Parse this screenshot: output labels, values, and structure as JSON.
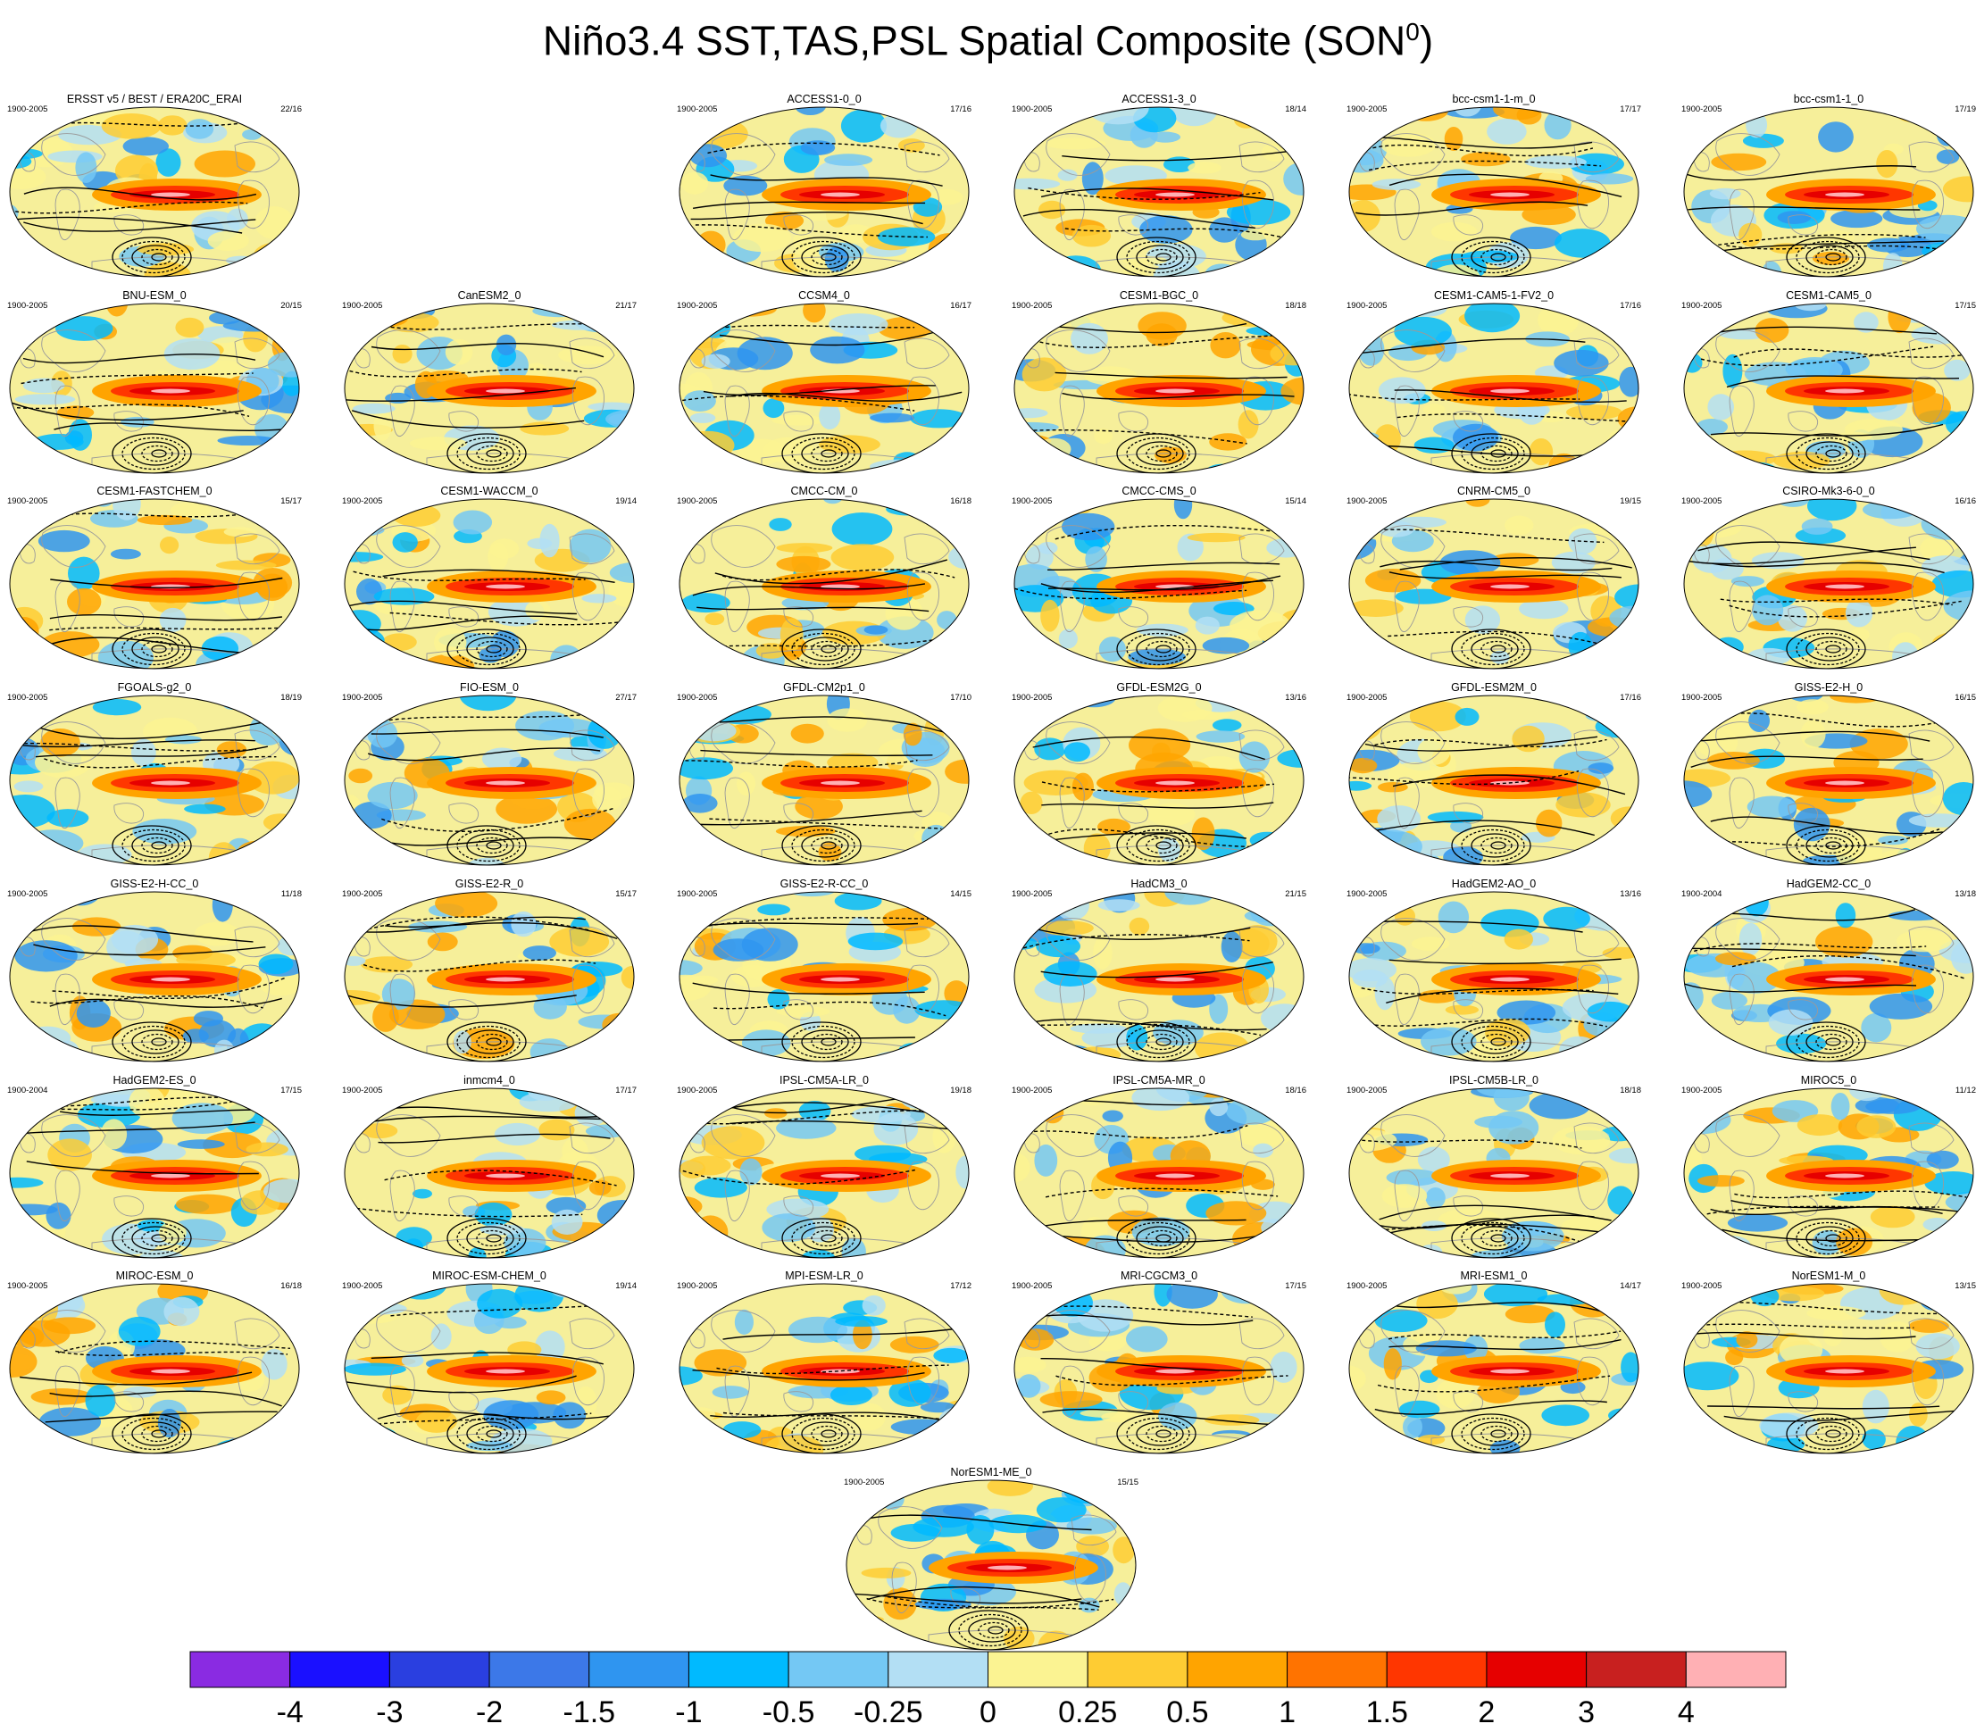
{
  "figure": {
    "title_main": "Niño3.4 SST,TAS,PSL Spatial Composite (SON",
    "title_sup": "0",
    "title_end": ")"
  },
  "colors": {
    "ocean_base": "#f6ef9a",
    "land_outline": "#9a9a9a",
    "contour": "#000000"
  },
  "panels": [
    {
      "title": "ERSST v5 / BEST / ERA20C_ERAI",
      "period": "1900-2005",
      "count": "22/16"
    },
    {
      "title": "ACCESS1-0_0",
      "period": "1900-2005",
      "count": "17/16"
    },
    {
      "title": "ACCESS1-3_0",
      "period": "1900-2005",
      "count": "18/14"
    },
    {
      "title": "bcc-csm1-1-m_0",
      "period": "1900-2005",
      "count": "17/17"
    },
    {
      "title": "bcc-csm1-1_0",
      "period": "1900-2005",
      "count": "17/19"
    },
    {
      "title": "BNU-ESM_0",
      "period": "1900-2005",
      "count": "20/15"
    },
    {
      "title": "CanESM2_0",
      "period": "1900-2005",
      "count": "21/17"
    },
    {
      "title": "CCSM4_0",
      "period": "1900-2005",
      "count": "16/17"
    },
    {
      "title": "CESM1-BGC_0",
      "period": "1900-2005",
      "count": "18/18"
    },
    {
      "title": "CESM1-CAM5-1-FV2_0",
      "period": "1900-2005",
      "count": "17/16"
    },
    {
      "title": "CESM1-CAM5_0",
      "period": "1900-2005",
      "count": "17/15"
    },
    {
      "title": "CESM1-FASTCHEM_0",
      "period": "1900-2005",
      "count": "15/17"
    },
    {
      "title": "CESM1-WACCM_0",
      "period": "1900-2005",
      "count": "19/14"
    },
    {
      "title": "CMCC-CM_0",
      "period": "1900-2005",
      "count": "16/18"
    },
    {
      "title": "CMCC-CMS_0",
      "period": "1900-2005",
      "count": "15/14"
    },
    {
      "title": "CNRM-CM5_0",
      "period": "1900-2005",
      "count": "19/15"
    },
    {
      "title": "CSIRO-Mk3-6-0_0",
      "period": "1900-2005",
      "count": "16/16"
    },
    {
      "title": "FGOALS-g2_0",
      "period": "1900-2005",
      "count": "18/19"
    },
    {
      "title": "FIO-ESM_0",
      "period": "1900-2005",
      "count": "27/17"
    },
    {
      "title": "GFDL-CM2p1_0",
      "period": "1900-2005",
      "count": "17/10"
    },
    {
      "title": "GFDL-ESM2G_0",
      "period": "1900-2005",
      "count": "13/16"
    },
    {
      "title": "GFDL-ESM2M_0",
      "period": "1900-2005",
      "count": "17/16"
    },
    {
      "title": "GISS-E2-H_0",
      "period": "1900-2005",
      "count": "16/15"
    },
    {
      "title": "GISS-E2-H-CC_0",
      "period": "1900-2005",
      "count": "11/18"
    },
    {
      "title": "GISS-E2-R_0",
      "period": "1900-2005",
      "count": "15/17"
    },
    {
      "title": "GISS-E2-R-CC_0",
      "period": "1900-2005",
      "count": "14/15"
    },
    {
      "title": "HadCM3_0",
      "period": "1900-2005",
      "count": "21/15"
    },
    {
      "title": "HadGEM2-AO_0",
      "period": "1900-2005",
      "count": "13/16"
    },
    {
      "title": "HadGEM2-CC_0",
      "period": "1900-2004",
      "count": "13/18"
    },
    {
      "title": "HadGEM2-ES_0",
      "period": "1900-2004",
      "count": "17/15"
    },
    {
      "title": "inmcm4_0",
      "period": "1900-2005",
      "count": "17/17"
    },
    {
      "title": "IPSL-CM5A-LR_0",
      "period": "1900-2005",
      "count": "19/18"
    },
    {
      "title": "IPSL-CM5A-MR_0",
      "period": "1900-2005",
      "count": "18/16"
    },
    {
      "title": "IPSL-CM5B-LR_0",
      "period": "1900-2005",
      "count": "18/18"
    },
    {
      "title": "MIROC5_0",
      "period": "1900-2005",
      "count": "11/12"
    },
    {
      "title": "MIROC-ESM_0",
      "period": "1900-2005",
      "count": "16/18"
    },
    {
      "title": "MIROC-ESM-CHEM_0",
      "period": "1900-2005",
      "count": "19/14"
    },
    {
      "title": "MPI-ESM-LR_0",
      "period": "1900-2005",
      "count": "17/12"
    },
    {
      "title": "MRI-CGCM3_0",
      "period": "1900-2005",
      "count": "17/15"
    },
    {
      "title": "MRI-ESM1_0",
      "period": "1900-2005",
      "count": "14/17"
    },
    {
      "title": "NorESM1-M_0",
      "period": "1900-2005",
      "count": "13/15"
    },
    {
      "title": "NorESM1-ME_0",
      "period": "1900-2005",
      "count": "15/15"
    }
  ],
  "colorbar": {
    "labels": [
      "-4",
      "-3",
      "-2",
      "-1.5",
      "-1",
      "-0.5",
      "-0.25",
      "0",
      "0.25",
      "0.5",
      "1",
      "1.5",
      "2",
      "3",
      "4"
    ],
    "colors": [
      "#8a2be2",
      "#1a10ff",
      "#2a3fe0",
      "#3c78e8",
      "#2f95f0",
      "#00baff",
      "#74c8f4",
      "#b3dff4",
      "#fbf392",
      "#fecc33",
      "#ffa400",
      "#ff7300",
      "#ff3600",
      "#e60000",
      "#c8201f",
      "#ffb0b4"
    ]
  }
}
